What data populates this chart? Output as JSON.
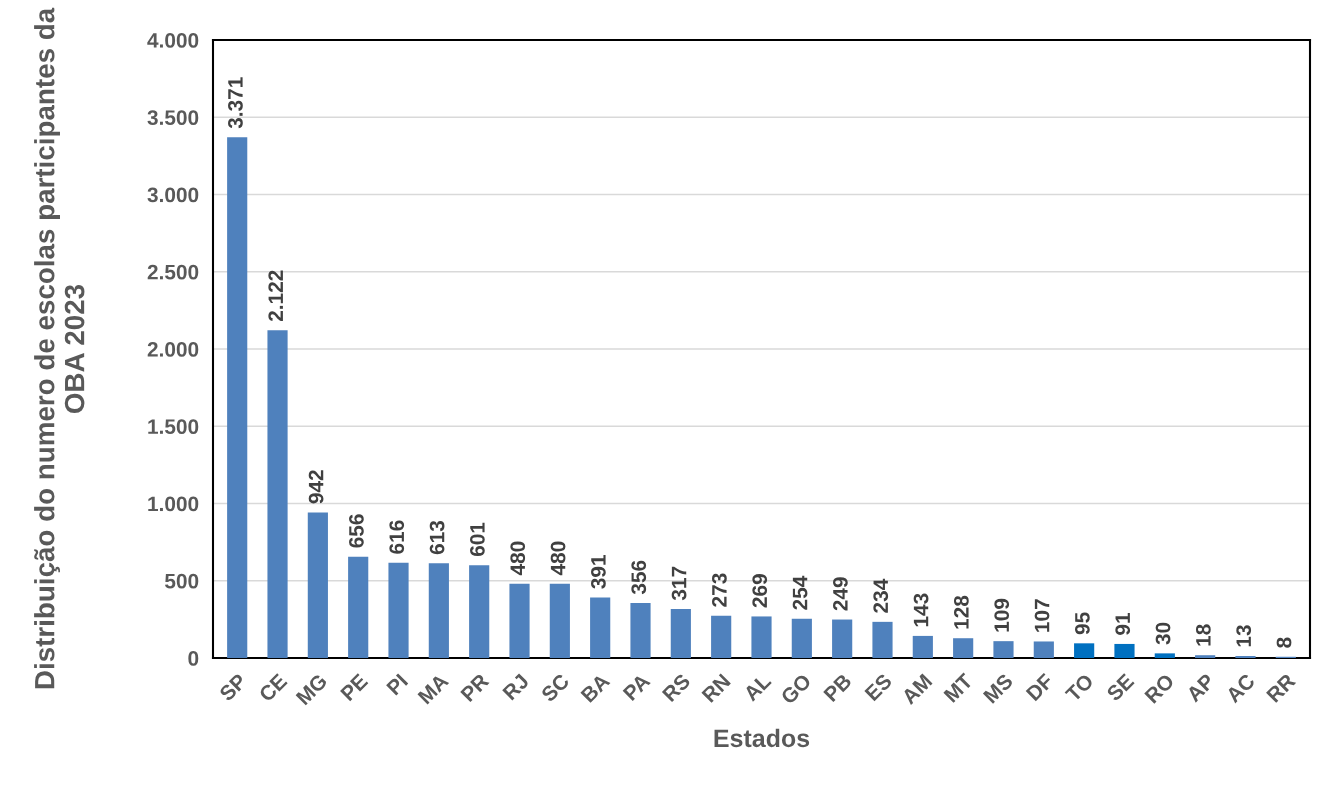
{
  "chart_data": {
    "type": "bar",
    "xlabel": "Estados",
    "ylabel": "Distribuição do numero de escolas participantes da OBA 2023",
    "categories": [
      "SP",
      "CE",
      "MG",
      "PE",
      "PI",
      "MA",
      "PR",
      "RJ",
      "SC",
      "BA",
      "PA",
      "RS",
      "RN",
      "AL",
      "GO",
      "PB",
      "ES",
      "AM",
      "MT",
      "MS",
      "DF",
      "TO",
      "SE",
      "RO",
      "AP",
      "AC",
      "RR"
    ],
    "values": [
      3371,
      2122,
      942,
      656,
      616,
      613,
      601,
      480,
      480,
      391,
      356,
      317,
      273,
      269,
      254,
      249,
      234,
      143,
      128,
      109,
      107,
      95,
      91,
      30,
      18,
      13,
      8
    ],
    "value_labels": [
      "3.371",
      "2.122",
      "942",
      "656",
      "616",
      "613",
      "601",
      "480",
      "480",
      "391",
      "356",
      "317",
      "273",
      "269",
      "254",
      "249",
      "234",
      "143",
      "128",
      "109",
      "107",
      "95",
      "91",
      "30",
      "18",
      "13",
      "8"
    ],
    "colors": [
      "#4f81bd",
      "#4f81bd",
      "#4f81bd",
      "#4f81bd",
      "#4f81bd",
      "#4f81bd",
      "#4f81bd",
      "#4f81bd",
      "#4f81bd",
      "#4f81bd",
      "#4f81bd",
      "#4f81bd",
      "#4f81bd",
      "#4f81bd",
      "#4f81bd",
      "#4f81bd",
      "#4f81bd",
      "#4f81bd",
      "#4f81bd",
      "#4f81bd",
      "#4f81bd",
      "#0070c0",
      "#0070c0",
      "#0070c0",
      "#4f81bd",
      "#4f81bd",
      "#4f81bd"
    ],
    "ylim": [
      0,
      4000
    ],
    "yticks": [
      {
        "value": 0,
        "label": "0"
      },
      {
        "value": 500,
        "label": "500"
      },
      {
        "value": 1000,
        "label": "1.000"
      },
      {
        "value": 1500,
        "label": "1.500"
      },
      {
        "value": 2000,
        "label": "2.000"
      },
      {
        "value": 2500,
        "label": "2.500"
      },
      {
        "value": 3000,
        "label": "3.000"
      },
      {
        "value": 3500,
        "label": "3.500"
      },
      {
        "value": 4000,
        "label": "4.000"
      }
    ],
    "grid": "y"
  }
}
